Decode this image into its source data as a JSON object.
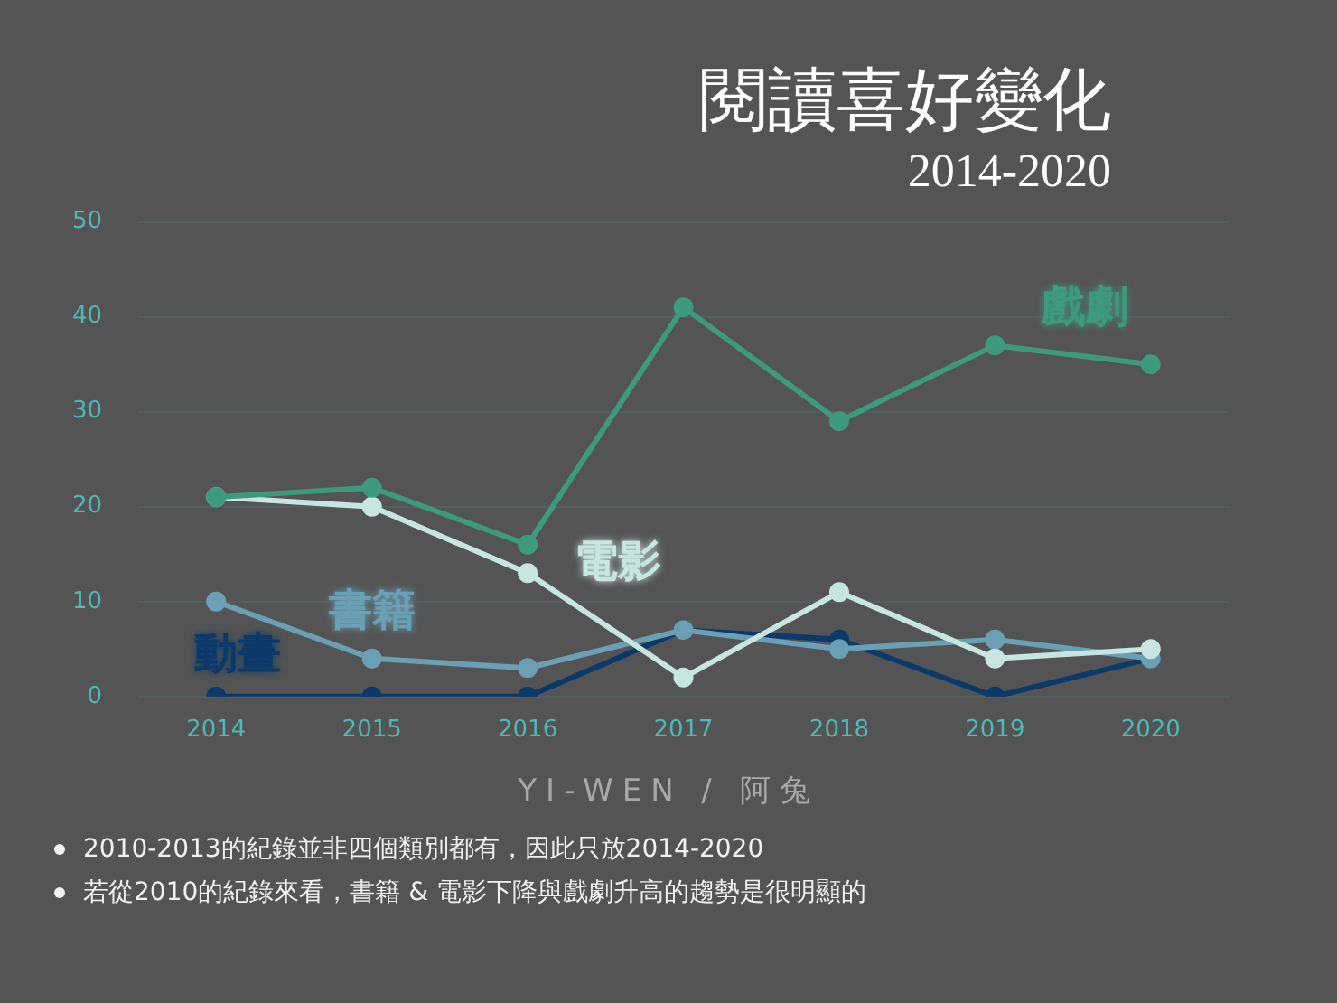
{
  "chart_data": {
    "type": "line",
    "title": "閱讀喜好變化",
    "subtitle": "2014-2020",
    "categories": [
      "2014",
      "2015",
      "2016",
      "2017",
      "2018",
      "2019",
      "2020"
    ],
    "series": [
      {
        "name": "戲劇",
        "color": "#3d9a7c",
        "values": [
          21,
          22,
          16,
          41,
          29,
          37,
          35
        ]
      },
      {
        "name": "電影",
        "color": "#c8e6e0",
        "values": [
          21,
          20,
          13,
          2,
          11,
          4,
          5
        ]
      },
      {
        "name": "書籍",
        "color": "#6a9fb5",
        "values": [
          10,
          4,
          3,
          7,
          5,
          6,
          4
        ]
      },
      {
        "name": "動畫",
        "color": "#0b3a6a",
        "values": [
          0,
          0,
          0,
          7,
          6,
          0,
          4
        ]
      }
    ],
    "ylim": [
      0,
      50
    ],
    "yticks": [
      0,
      10,
      20,
      30,
      40,
      50
    ],
    "grid": "y",
    "legend": false,
    "marker": "circle",
    "line_style": "solid",
    "annotations": [
      "YI-WEN / 阿兔",
      "2010-2013的紀錄並非四個類別都有，因此只放2014-2020",
      "若從2010的紀錄來看，書籍 & 電影下降與戲劇升高的趨勢是很明顯的"
    ]
  }
}
